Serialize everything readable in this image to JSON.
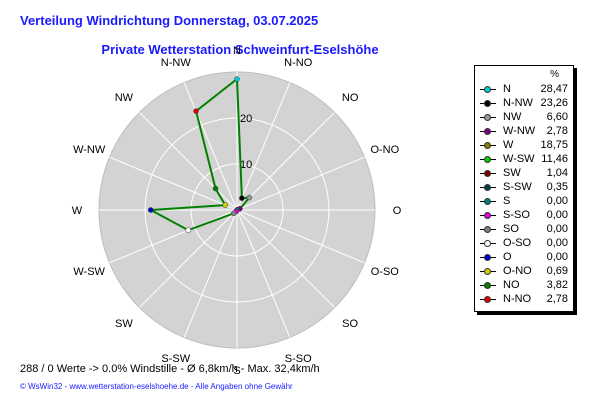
{
  "header": {
    "title": "Verteilung Windrichtung   Donnerstag, 03.07.2025",
    "subtitle": "Private Wetterstation Schweinfurt-Eselshöhe"
  },
  "chart_data": {
    "type": "radar",
    "directions": [
      "N",
      "N-NO",
      "NO",
      "O-NO",
      "O",
      "O-SO",
      "SO",
      "S-SO",
      "S",
      "S-SW",
      "SW",
      "W-SW",
      "W",
      "W-NW",
      "NW",
      "N-NW"
    ],
    "values": [
      28.47,
      2.78,
      3.82,
      0.69,
      0.0,
      0.0,
      0.0,
      0.0,
      0.0,
      0.35,
      1.04,
      11.46,
      18.75,
      2.78,
      6.6,
      23.26
    ],
    "rmax": 30,
    "ring_labels": [
      "10",
      "20"
    ],
    "ring_values": [
      10,
      20
    ],
    "unit": "%",
    "line_color": "#008000",
    "background_color": "#d3d3d3"
  },
  "legend": {
    "unit": "%",
    "items": [
      {
        "label": "N",
        "value": "28,47",
        "color": "#00d0d0"
      },
      {
        "label": "N-NW",
        "value": "23,26",
        "color": "#000000"
      },
      {
        "label": "NW",
        "value": "6,60",
        "color": "#9a9a9a"
      },
      {
        "label": "W-NW",
        "value": "2,78",
        "color": "#800080"
      },
      {
        "label": "W",
        "value": "18,75",
        "color": "#808000"
      },
      {
        "label": "W-SW",
        "value": "11,46",
        "color": "#00d000"
      },
      {
        "label": "SW",
        "value": "1,04",
        "color": "#800000"
      },
      {
        "label": "S-SW",
        "value": "0,35",
        "color": "#004040"
      },
      {
        "label": "S",
        "value": "0,00",
        "color": "#008080"
      },
      {
        "label": "S-SO",
        "value": "0,00",
        "color": "#e000e0"
      },
      {
        "label": "SO",
        "value": "0,00",
        "color": "#808080"
      },
      {
        "label": "O-SO",
        "value": "0,00",
        "color": "#ffffff"
      },
      {
        "label": "O",
        "value": "0,00",
        "color": "#0000d0"
      },
      {
        "label": "O-NO",
        "value": "0,69",
        "color": "#d0d000"
      },
      {
        "label": "NO",
        "value": "3,82",
        "color": "#008000"
      },
      {
        "label": "N-NO",
        "value": "2,78",
        "color": "#e00000"
      }
    ]
  },
  "footer": {
    "stats": "288 / 0 Werte  -> 0.0% Windstille   -   Ø 6,8km/h   -  Max. 32,4km/h",
    "copyright": "© WsWin32  -  www.wetterstation-eselshoehe.de  -  Alle Angaben ohne Gewähr"
  }
}
